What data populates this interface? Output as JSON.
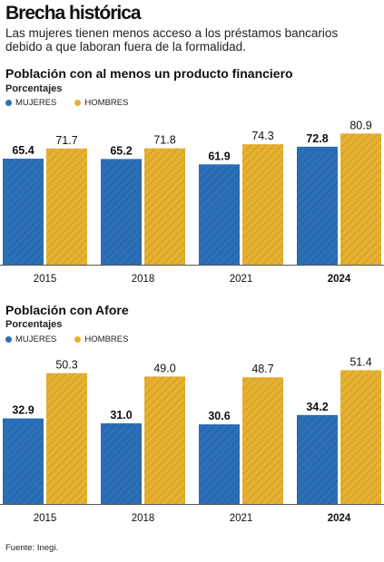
{
  "header": {
    "title": "Brecha histórica",
    "subtitle": "Las mujeres tienen menos acceso a los préstamos bancarios debido a que laboran fuera de la formalidad."
  },
  "colors": {
    "mujeres": "#2b6fb8",
    "hombres": "#e6b030"
  },
  "charts": [
    {
      "title": "Población con al menos un producto financiero",
      "unit": "Porcentajes",
      "legend": [
        "MUJERES",
        "HOMBRES"
      ]
    },
    {
      "title": "Población con Afore",
      "unit": "Porcentajes",
      "legend": [
        "MUJERES",
        "HOMBRES"
      ]
    }
  ],
  "source": "Fuente: Inegi.",
  "chart_data": [
    {
      "type": "bar",
      "title": "Población con al menos un producto financiero",
      "ylabel": "Porcentajes",
      "categories": [
        "2015",
        "2018",
        "2021",
        "2024"
      ],
      "series": [
        {
          "name": "MUJERES",
          "values": [
            65.4,
            65.2,
            61.9,
            72.8
          ],
          "labels": [
            "65.4",
            "65.2",
            "61.9",
            "72.8"
          ]
        },
        {
          "name": "HOMBRES",
          "values": [
            71.7,
            71.8,
            74.3,
            80.9
          ],
          "labels": [
            "71.7",
            "71.8",
            "74.3",
            "80.9"
          ]
        }
      ],
      "ylim": [
        0,
        85
      ],
      "grid": false,
      "legend_position": "top-left"
    },
    {
      "type": "bar",
      "title": "Población con Afore",
      "ylabel": "Porcentajes",
      "categories": [
        "2015",
        "2018",
        "2021",
        "2024"
      ],
      "series": [
        {
          "name": "MUJERES",
          "values": [
            32.9,
            31.0,
            30.6,
            34.2
          ],
          "labels": [
            "32.9",
            "31.0",
            "30.6",
            "34.2"
          ]
        },
        {
          "name": "HOMBRES",
          "values": [
            50.3,
            49.0,
            48.7,
            51.4
          ],
          "labels": [
            "50.3",
            "49.0",
            "48.7",
            "51.4"
          ]
        }
      ],
      "ylim": [
        0,
        54
      ],
      "grid": false,
      "legend_position": "top-left"
    }
  ]
}
